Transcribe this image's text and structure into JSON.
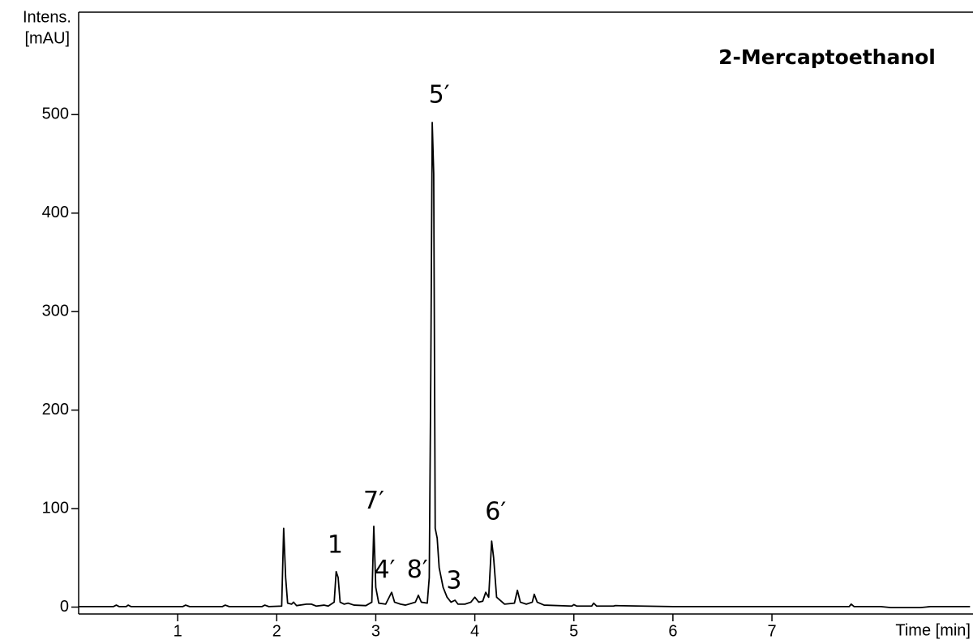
{
  "chart_data": {
    "type": "line",
    "title": "2-Mercaptoethanol",
    "y_label": [
      "Intens.",
      "[mAU]"
    ],
    "x_label": "Time [min]",
    "color": "#000000",
    "xlim": [
      0,
      9.03
    ],
    "ylim": [
      -7,
      604
    ],
    "xticks": [
      1,
      2,
      3,
      4,
      5,
      6,
      7
    ],
    "yticks": [
      0,
      100,
      200,
      300,
      400,
      500
    ],
    "x": [
      0.0,
      0.35,
      0.38,
      0.41,
      0.48,
      0.5,
      0.53,
      1.05,
      1.08,
      1.12,
      1.45,
      1.48,
      1.52,
      1.85,
      1.88,
      1.92,
      2.05,
      2.07,
      2.09,
      2.11,
      2.15,
      2.17,
      2.2,
      2.3,
      2.35,
      2.4,
      2.48,
      2.52,
      2.58,
      2.6,
      2.62,
      2.64,
      2.68,
      2.72,
      2.78,
      2.9,
      2.96,
      2.98,
      3.0,
      3.03,
      3.1,
      3.16,
      3.19,
      3.25,
      3.3,
      3.4,
      3.43,
      3.46,
      3.52,
      3.54,
      3.555,
      3.57,
      3.585,
      3.6,
      3.62,
      3.64,
      3.68,
      3.72,
      3.76,
      3.8,
      3.83,
      3.9,
      3.96,
      4.0,
      4.04,
      4.08,
      4.11,
      4.14,
      4.17,
      4.19,
      4.22,
      4.3,
      4.4,
      4.43,
      4.46,
      4.52,
      4.58,
      4.6,
      4.63,
      4.7,
      4.98,
      5.0,
      5.03,
      5.18,
      5.2,
      5.23,
      5.4,
      5.42,
      6.0,
      6.9,
      7.78,
      7.8,
      7.83,
      8.1,
      8.2,
      8.5,
      8.6,
      9.0
    ],
    "values": [
      0.5,
      0.5,
      2,
      0.5,
      0.5,
      2,
      0.5,
      0.5,
      2,
      0.5,
      0.5,
      2,
      0.5,
      0.5,
      2,
      0.5,
      1,
      80,
      30,
      4,
      3,
      5,
      1.5,
      3,
      3,
      1,
      2,
      1,
      5,
      36,
      30,
      5,
      3,
      4,
      2,
      1.5,
      5,
      82,
      20,
      4,
      3,
      15,
      5,
      3,
      2,
      5,
      12,
      5,
      4,
      30,
      230,
      492,
      440,
      80,
      70,
      40,
      20,
      10,
      5,
      7,
      3,
      3,
      5,
      10,
      5,
      6,
      15,
      10,
      67,
      50,
      10,
      3,
      4,
      17,
      5,
      3,
      5,
      13,
      5,
      2,
      1,
      2.5,
      1,
      1,
      4,
      1,
      1,
      1.5,
      0.5,
      0.5,
      0.5,
      3,
      0.5,
      0.5,
      -0.5,
      -0.5,
      0.5,
      0.5
    ],
    "annotations": [
      {
        "text": "1",
        "x": 2.59,
        "y": 62
      },
      {
        "text": "7′",
        "x": 2.98,
        "y": 107
      },
      {
        "text": "4′",
        "x": 3.09,
        "y": 37
      },
      {
        "text": "8′",
        "x": 3.42,
        "y": 37
      },
      {
        "text": "3",
        "x": 3.79,
        "y": 26
      },
      {
        "text": "5′",
        "x": 3.64,
        "y": 519
      },
      {
        "text": "6′",
        "x": 4.21,
        "y": 96
      }
    ]
  }
}
